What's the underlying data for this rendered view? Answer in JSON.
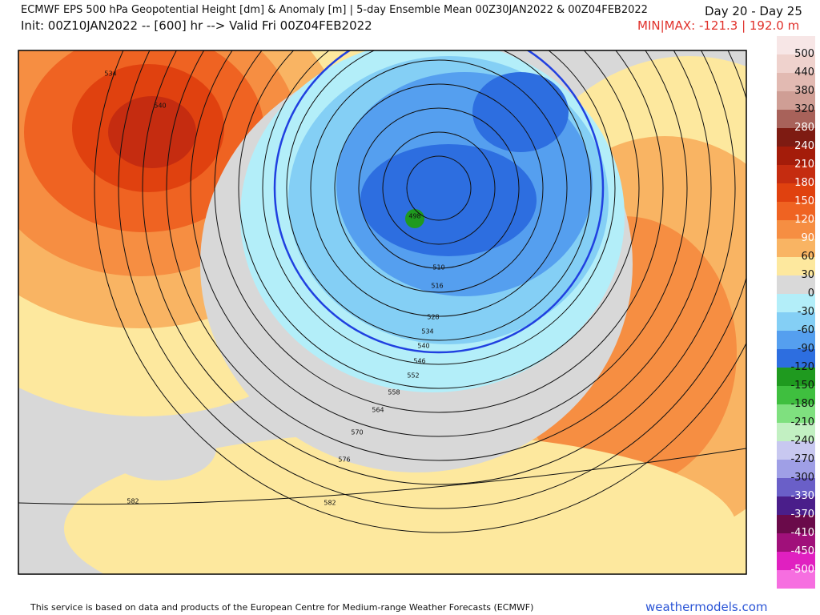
{
  "header": {
    "title": "ECMWF EPS 500 hPa Geopotential Height [dm] & Anomaly [m] | 5-day Ensemble Mean 00Z30JAN2022 & 00Z04FEB2022",
    "init": "Init: 00Z10JAN2022 -- [600] hr --> Valid Fri 00Z04FEB2022",
    "days": "Day 20 - Day 25",
    "minmax": "MIN|MAX: -121.3 | 192.0 m"
  },
  "map": {
    "contour_labels": [
      534,
      540,
      498,
      510,
      516,
      528,
      534,
      540,
      546,
      552,
      558,
      564,
      570,
      576,
      582,
      582
    ]
  },
  "colorbar": {
    "labels": [
      500,
      440,
      380,
      320,
      280,
      240,
      210,
      180,
      150,
      120,
      90,
      60,
      30,
      0,
      -30,
      -60,
      -90,
      -120,
      -150,
      -180,
      -210,
      -240,
      -270,
      -300,
      -330,
      -370,
      -410,
      -450,
      -500
    ],
    "colors": [
      "#f7e6e6",
      "#efd2cd",
      "#e2bab2",
      "#cf9e95",
      "#a8625a",
      "#7e1b12",
      "#a41c0a",
      "#c52c10",
      "#e0410f",
      "#ef6322",
      "#f68e42",
      "#f9b463",
      "#fde89e",
      "#d9d9d9",
      "#b3eef9",
      "#84cff5",
      "#559fef",
      "#2d6ee0",
      "#1f9a1f",
      "#3fbf3f",
      "#7fe07f",
      "#c2f0c2",
      "#c8c8f0",
      "#9f9fe6",
      "#6a5fc8",
      "#4a1e8a",
      "#6a0a4a",
      "#a0107a",
      "#e020c0",
      "#f66ee0"
    ]
  },
  "footer": {
    "credit": "This service is based on data and products of the European Centre for Medium-range Weather Forecasts (ECMWF)",
    "site": "weathermodels.com"
  }
}
